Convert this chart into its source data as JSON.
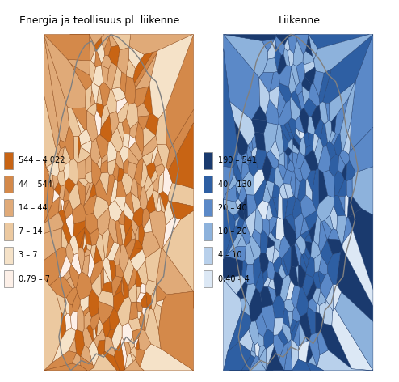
{
  "title_left": "Energia ja teollisuus pl. liikenne",
  "title_right": "Liikenne",
  "left_legend_labels": [
    "544 – 4 022",
    "44 – 544",
    "14 – 44",
    "7 – 14",
    "3 – 7",
    "0,79 – 7"
  ],
  "right_legend_labels": [
    "190 – 541",
    "40 – 130",
    "20 – 40",
    "10 – 20",
    "4 – 10",
    "0,40 – 4"
  ],
  "left_colors": [
    "#c86414",
    "#d4894a",
    "#e0aa78",
    "#ecc9a0",
    "#f5e2c8",
    "#fdf0e8"
  ],
  "right_colors": [
    "#1a3a6e",
    "#2e5fa3",
    "#5b89c8",
    "#8db2dc",
    "#b8d0eb",
    "#dce8f5"
  ],
  "background_color": "#ffffff",
  "border_color": "#a0522d",
  "border_color_right": "#2a4a8a",
  "figsize": [
    4.94,
    4.72
  ],
  "dpi": 100,
  "title_fontsize": 9,
  "legend_fontsize": 7
}
